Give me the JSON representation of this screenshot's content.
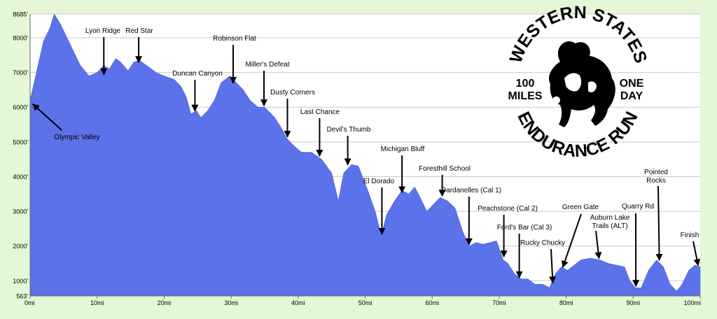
{
  "chart_data": {
    "type": "area",
    "title": "",
    "xlabel": "",
    "ylabel": "",
    "xlim": [
      0,
      100
    ],
    "ylim": [
      563,
      8685
    ],
    "grid": true,
    "y_ticks": [
      "563'",
      "1000'",
      "2000'",
      "3000'",
      "4000'",
      "5000'",
      "6000'",
      "7000'",
      "8000'",
      "8685'"
    ],
    "y_tick_values": [
      563,
      1000,
      2000,
      3000,
      4000,
      5000,
      6000,
      7000,
      8000,
      8685
    ],
    "x_ticks": [
      "0mi",
      "10mi",
      "20mi",
      "30mi",
      "40mi",
      "50mi",
      "60mi",
      "70mi",
      "80mi",
      "90mi",
      "100mi"
    ],
    "x_tick_values": [
      0,
      10,
      20,
      30,
      40,
      50,
      60,
      70,
      80,
      90,
      100
    ],
    "series": [
      {
        "x": [
          0,
          1,
          2,
          3,
          3.6,
          4.5,
          6,
          7.5,
          8.8,
          10,
          11,
          11.8,
          12.8,
          13.5,
          14.6,
          15.5,
          16.3,
          17.4,
          18.8,
          20,
          21.5,
          22.5,
          23.3,
          24,
          24.8,
          25.5,
          26.5,
          27.5,
          28.5,
          29.8,
          30.8,
          31.8,
          32.8,
          34,
          35,
          36.5,
          37.5,
          38.3,
          39.3,
          40.5,
          42,
          43.5,
          45,
          46,
          46.8,
          48,
          49,
          50.4,
          51.5,
          52.4,
          53.2,
          54.4,
          55.5,
          56.5,
          57.4,
          58.2,
          59.2,
          60.2,
          61.2,
          62.3,
          63.4,
          64.6,
          65.5,
          66.6,
          67.6,
          68.6,
          69.6,
          70.6,
          71.3,
          72.3,
          73.3,
          74.3,
          75.3,
          76.5,
          77.5,
          78.4,
          79.3,
          80.2,
          81.2,
          82.2,
          83.6,
          85,
          86.3,
          87.5,
          88.7,
          89.5,
          90.3,
          91.2,
          92.3,
          93.5,
          94.5,
          95.5,
          96.5,
          97.3,
          98.3,
          99.2,
          100
        ],
        "y": [
          6200,
          7050,
          7900,
          8300,
          8685,
          8400,
          7800,
          7200,
          6900,
          7000,
          7200,
          7100,
          7400,
          7300,
          7050,
          7300,
          7350,
          7200,
          7000,
          6900,
          6800,
          6600,
          6300,
          5800,
          5900,
          5700,
          5900,
          6200,
          6700,
          6900,
          6700,
          6500,
          6200,
          6000,
          6000,
          5700,
          5400,
          5100,
          4900,
          4700,
          4700,
          4500,
          4100,
          3300,
          4100,
          4350,
          4300,
          3600,
          3000,
          2300,
          2900,
          3300,
          3600,
          3500,
          3700,
          3400,
          3000,
          3200,
          3400,
          3300,
          3100,
          2400,
          2000,
          2100,
          2050,
          2100,
          2150,
          1600,
          1500,
          1200,
          1050,
          1050,
          900,
          900,
          800,
          1200,
          1400,
          1300,
          1450,
          1600,
          1650,
          1600,
          1500,
          1450,
          1400,
          1000,
          800,
          800,
          1300,
          1600,
          1400,
          900,
          700,
          900,
          1300,
          1450,
          1400
        ]
      }
    ],
    "annotations": [
      {
        "id": "olympic-valley",
        "text": "Olympic Valley",
        "x": 0.4,
        "y": 6050
      },
      {
        "id": "lyon-ridge",
        "text": "Lyon Ridge",
        "x": 11,
        "y": 6900
      },
      {
        "id": "red-star",
        "text": "Red Star",
        "x": 16.2,
        "y": 7250
      },
      {
        "id": "duncan-canyon",
        "text": "Duncan Canyon",
        "x": 24.6,
        "y": 5850
      },
      {
        "id": "robinson-flat",
        "text": "Robinson Flat",
        "x": 30.3,
        "y": 6650
      },
      {
        "id": "millers-defeat",
        "text": "Miller's Defeat",
        "x": 34.9,
        "y": 6000
      },
      {
        "id": "dusty-corners",
        "text": "Dusty Corners",
        "x": 38.4,
        "y": 5100
      },
      {
        "id": "last-chance",
        "text": "Last Chance",
        "x": 43.2,
        "y": 4550
      },
      {
        "id": "devils-thumb",
        "text": "Devil's Thumb",
        "x": 47.4,
        "y": 4300
      },
      {
        "id": "el-dorado",
        "text": "El Dorado",
        "x": 52.5,
        "y": 2300
      },
      {
        "id": "michigan-bluff",
        "text": "Michigan Bluff",
        "x": 55.5,
        "y": 3500
      },
      {
        "id": "foresthill-school",
        "text": "Foresthill School",
        "x": 61.5,
        "y": 3400
      },
      {
        "id": "dardanelles",
        "text": "Dardanelles (Cal 1)",
        "x": 65.5,
        "y": 2000
      },
      {
        "id": "peachstone",
        "text": "Peachstone (Cal 2)",
        "x": 70.7,
        "y": 1650
      },
      {
        "id": "fords-bar",
        "text": "Ford's Bar (Cal 3)",
        "x": 73.0,
        "y": 1050
      },
      {
        "id": "rucky-chucky",
        "text": "Rucky Chucky",
        "x": 78.0,
        "y": 900
      },
      {
        "id": "green-gate",
        "text": "Green Gate",
        "x": 79.5,
        "y": 1350
      },
      {
        "id": "auburn-lake-trails",
        "text": "Auburn Lake\nTrails (ALT)",
        "x": 84.9,
        "y": 1600
      },
      {
        "id": "quarry-rd",
        "text": "Quarry Rd",
        "x": 90.4,
        "y": 800
      },
      {
        "id": "pointed-rocks",
        "text": "Pointed\nRocks",
        "x": 93.9,
        "y": 1550
      },
      {
        "id": "finish",
        "text": "Finish",
        "x": 99.7,
        "y": 1400
      }
    ]
  },
  "logo": {
    "name": "western-states-logo",
    "top_text": "WESTERN STATES",
    "bottom_text": "ENDURANCE RUN",
    "left_text_1": "100",
    "left_text_2": "MILES",
    "right_text_1": "ONE",
    "right_text_2": "DAY"
  },
  "colors": {
    "background": "#e4f7d6",
    "plot_background": "#ffffff",
    "area_fill": "#5b72ea",
    "gridline": "#c9c9c9",
    "text": "#000000"
  }
}
